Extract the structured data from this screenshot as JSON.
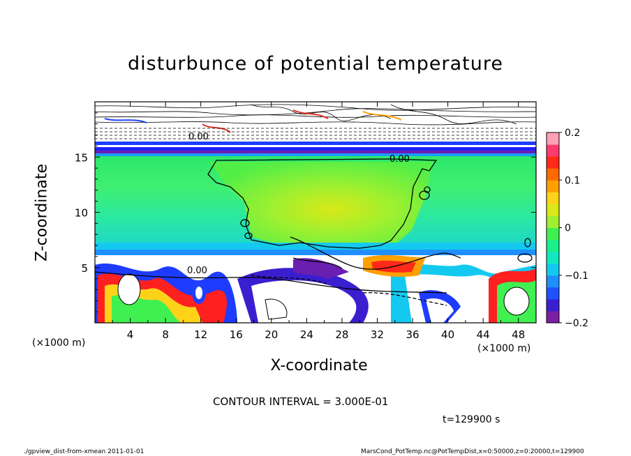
{
  "chart_data": {
    "type": "heatmap",
    "title": "disturbunce of potential temperature",
    "xlabel": "X-coordinate",
    "ylabel": "Z-coordinate",
    "x_unit": "(×1000 m)",
    "x_unit_right": "(×1000 m)",
    "xlim": [
      0,
      50
    ],
    "ylim": [
      0,
      20
    ],
    "x_ticks": [
      4,
      8,
      12,
      16,
      20,
      24,
      28,
      32,
      36,
      40,
      44,
      48
    ],
    "y_ticks": [
      5,
      10,
      15
    ],
    "colorbar": {
      "range": [
        -0.2,
        0.2
      ],
      "ticks": [
        {
          "value": 0.2,
          "label": "0.2"
        },
        {
          "value": 0.1,
          "label": "0.1"
        },
        {
          "value": 0,
          "label": "0"
        },
        {
          "value": -0.1,
          "label": "−0.1"
        },
        {
          "value": -0.2,
          "label": "−0.2"
        }
      ],
      "colors": [
        "#7b1fa2",
        "#3a1fd0",
        "#1e52ff",
        "#1f8fff",
        "#14c9f0",
        "#10e8c0",
        "#19f08a",
        "#40f050",
        "#9ef030",
        "#d8e818",
        "#ffd21a",
        "#ffa000",
        "#ff6a00",
        "#ff2a1a",
        "#ff3b6e",
        "#ffa0b4"
      ]
    },
    "contour_labels": [
      "0.00",
      "0.00",
      "0.00"
    ],
    "contour_interval_text": "CONTOUR INTERVAL = 3.000E-01",
    "time_text": "t=129900 s"
  },
  "footer": {
    "left": "./gpview_dist-from-xmean  2011-01-01",
    "right": "MarsCond_PotTemp.nc@PotTempDist,x=0:50000,z=0:20000,t=129900"
  },
  "colors": {
    "background_green": "#1de67a",
    "core_yellowgreen": "#90ee34",
    "band_blue": "#1e3cff",
    "band_purple": "#6a1fb0",
    "hot_red": "#ff2020"
  }
}
